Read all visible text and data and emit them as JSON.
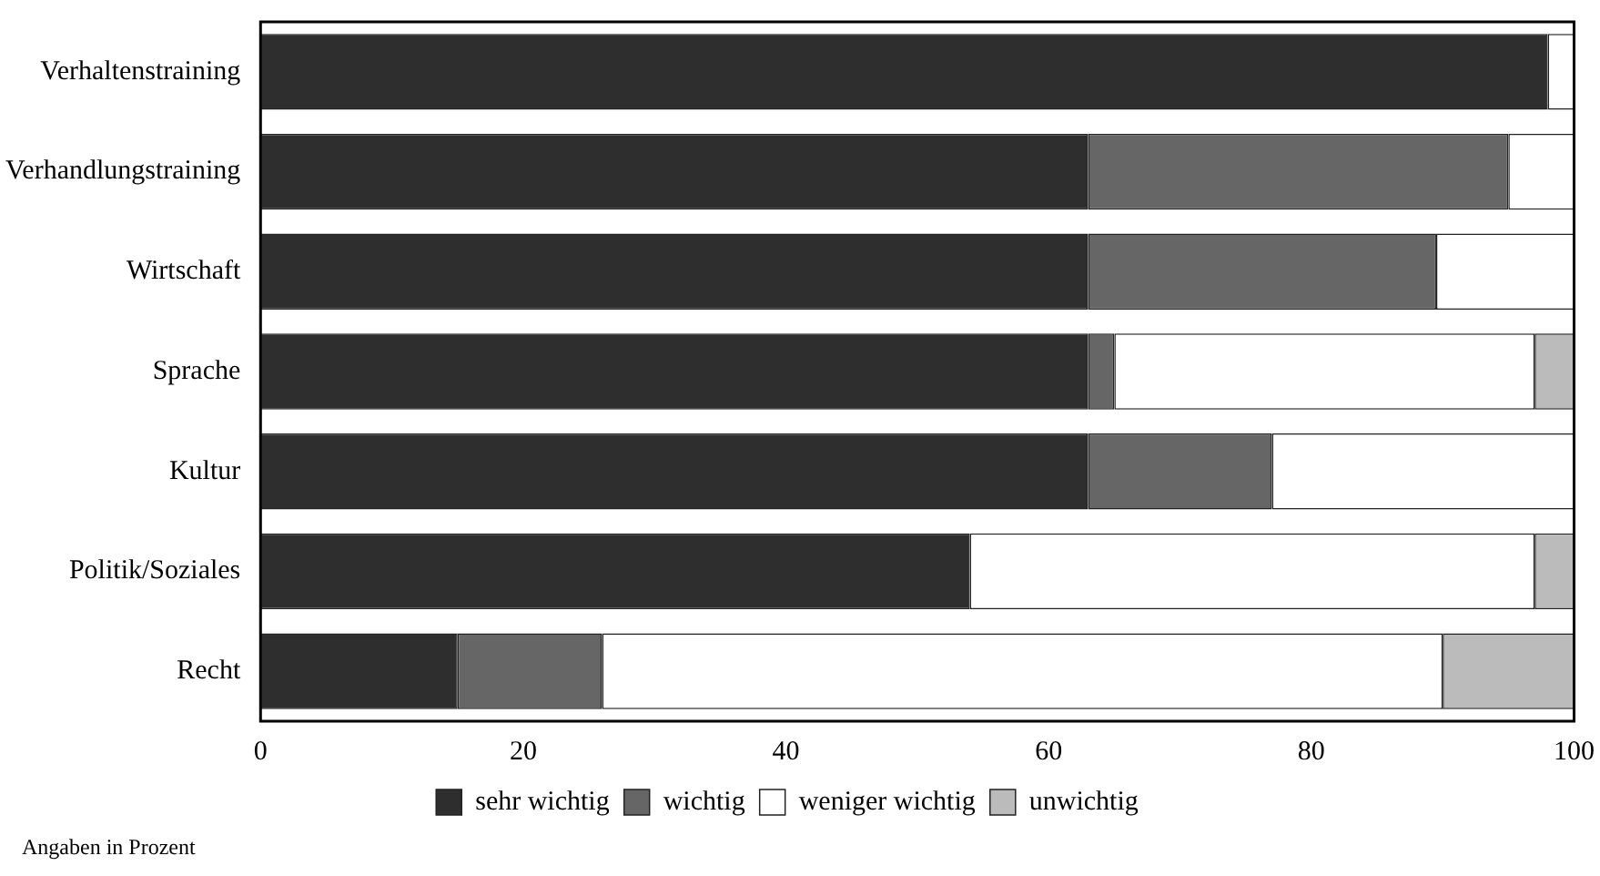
{
  "chart_data": {
    "type": "bar",
    "orientation": "horizontal",
    "stacked": true,
    "categories": [
      "Verhaltenstraining",
      "Verhandlungstraining",
      "Wirtschaft",
      "Sprache",
      "Kultur",
      "Politik/Soziales",
      "Recht"
    ],
    "series": [
      {
        "name": "sehr wichtig",
        "color": "#2e2e2e",
        "values": [
          98,
          63,
          63,
          63,
          63,
          54,
          15
        ]
      },
      {
        "name": "wichtig",
        "color": "#666666",
        "values": [
          0,
          32,
          26.5,
          2,
          14,
          0,
          11
        ]
      },
      {
        "name": "weniger wichtig",
        "color": "#ffffff",
        "values": [
          2,
          5,
          10.5,
          32,
          23,
          43,
          64
        ]
      },
      {
        "name": "unwichtig",
        "color": "#bbbbbb",
        "values": [
          0,
          0,
          0,
          3,
          0,
          3,
          10
        ]
      }
    ],
    "xlim": [
      0,
      100
    ],
    "xticks": [
      0,
      20,
      40,
      60,
      80,
      100
    ],
    "grid": false,
    "legend": "bottom",
    "annotations": [
      "Angaben in Prozent"
    ]
  }
}
